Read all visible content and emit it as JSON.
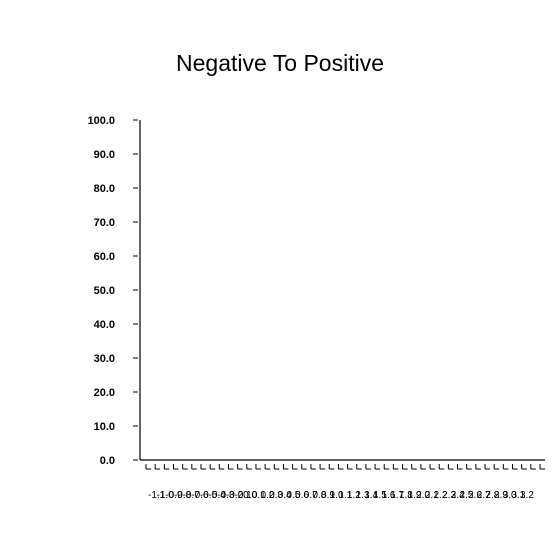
{
  "chart_data": {
    "type": "line",
    "title": "Negative To Positive",
    "xlabel": "",
    "ylabel": "",
    "ylim": [
      0,
      100
    ],
    "y_ticks": [
      "0.0",
      "10.0",
      "20.0",
      "30.0",
      "40.0",
      "50.0",
      "60.0",
      "70.0",
      "80.0",
      "90.0",
      "100.0"
    ],
    "x_tick_labels": [
      "-1.1",
      "-1.0",
      "-0.9",
      "-0.8",
      "-0.7",
      "-0.6",
      "-0.5",
      "-0.4",
      "-0.3",
      "-0.2",
      "-0.1",
      "0.0",
      "0.1",
      "0.2",
      "0.3",
      "0.4",
      "0.5",
      "0.6",
      "0.7",
      "0.8",
      "0.9",
      "1.0",
      "1.1",
      "1.2",
      "1.3",
      "1.4",
      "1.5",
      "1.6",
      "1.7",
      "1.8",
      "1.9",
      "2.0",
      "2.1",
      "2.2",
      "2.3",
      "2.4",
      "2.5",
      "2.6",
      "2.7",
      "2.8",
      "2.9",
      "3.0",
      "3.1",
      "3.2"
    ],
    "series": [],
    "grid": false,
    "legend": "none"
  }
}
